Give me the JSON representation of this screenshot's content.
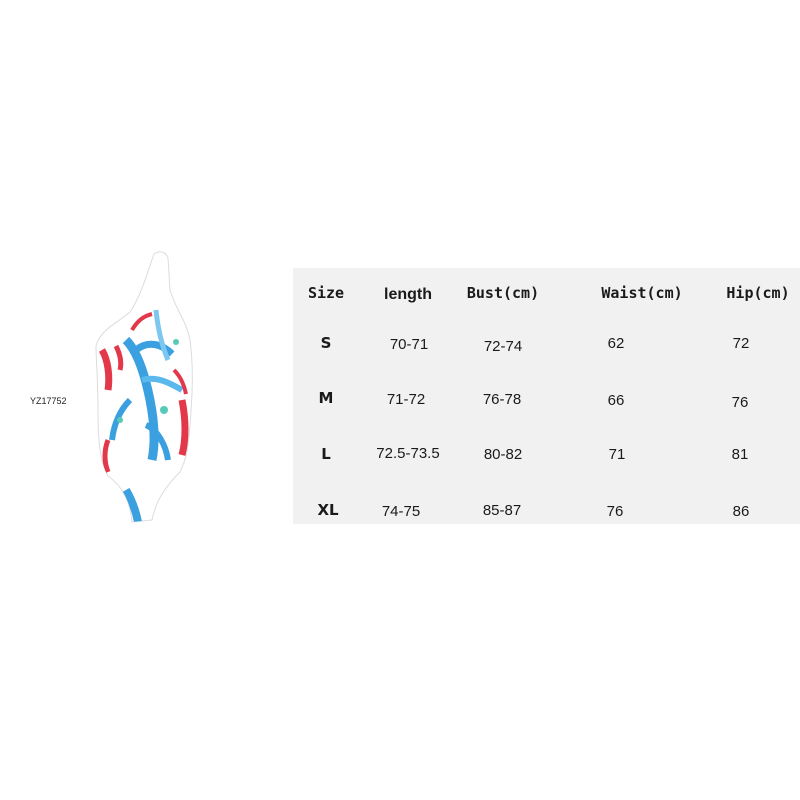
{
  "product": {
    "sku": "YZ17752",
    "image": "one-shoulder-swimsuit-coral-print",
    "colors": {
      "blue": "#3aa0e0",
      "red": "#e2384a",
      "white": "#ffffff",
      "teal": "#57c9b6"
    }
  },
  "size_table": {
    "headers": {
      "size": "Size",
      "length": "length",
      "bust": "Bust(cm)",
      "waist": "Waist(cm)",
      "hip": "Hip(cm)"
    },
    "rows": [
      {
        "size": "S",
        "length": "70-71",
        "bust": "72-74",
        "waist": "62",
        "hip": "72"
      },
      {
        "size": "M",
        "length": "71-72",
        "bust": "76-78",
        "waist": "66",
        "hip": "76"
      },
      {
        "size": "L",
        "length": "72.5-73.5",
        "bust": "80-82",
        "waist": "71",
        "hip": "81"
      },
      {
        "size": "XL",
        "length": "74-75",
        "bust": "85-87",
        "waist": "76",
        "hip": "86"
      }
    ]
  }
}
